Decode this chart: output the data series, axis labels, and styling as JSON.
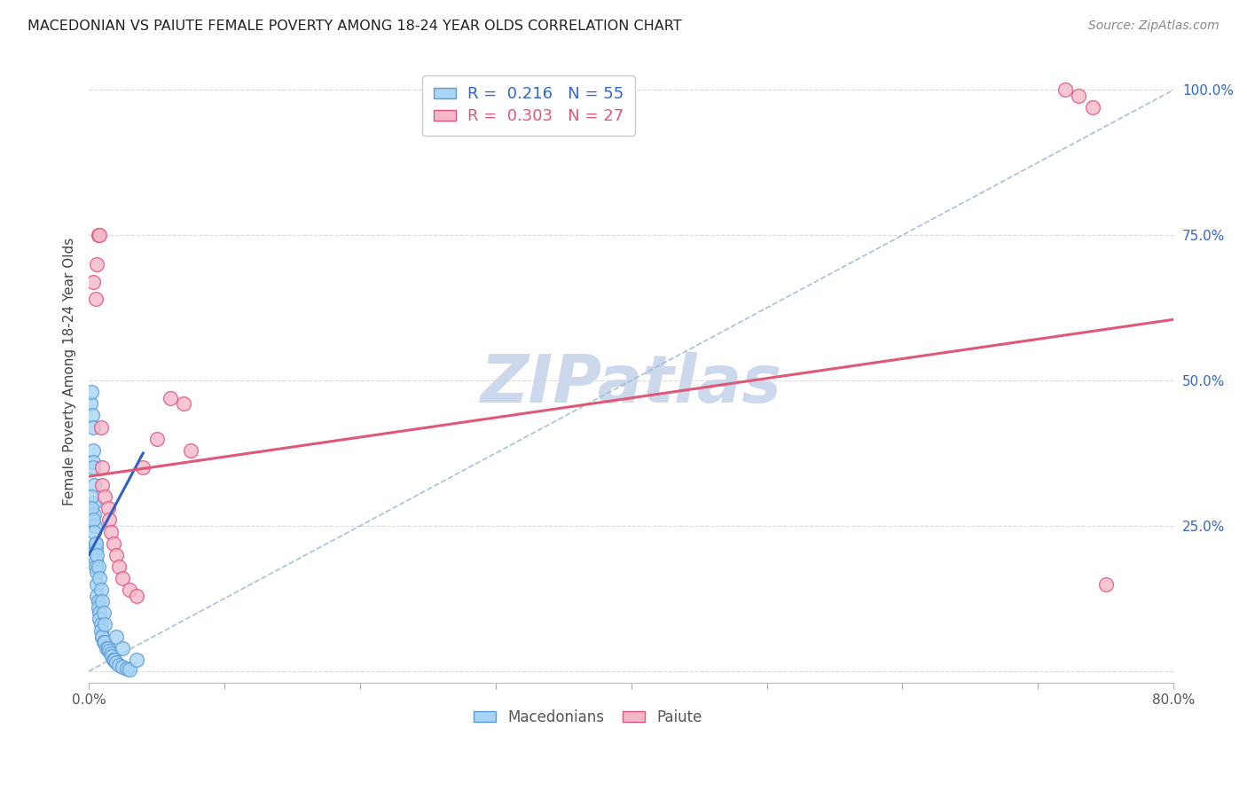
{
  "title": "MACEDONIAN VS PAIUTE FEMALE POVERTY AMONG 18-24 YEAR OLDS CORRELATION CHART",
  "source": "Source: ZipAtlas.com",
  "ylabel": "Female Poverty Among 18-24 Year Olds",
  "xlim": [
    0.0,
    0.8
  ],
  "ylim": [
    -0.02,
    1.05
  ],
  "xticks": [
    0.0,
    0.1,
    0.2,
    0.3,
    0.4,
    0.5,
    0.6,
    0.7,
    0.8
  ],
  "xticklabels": [
    "0.0%",
    "",
    "",
    "",
    "",
    "",
    "",
    "",
    "80.0%"
  ],
  "yticks": [
    0.0,
    0.25,
    0.5,
    0.75,
    1.0
  ],
  "yticklabels_right": [
    "",
    "25.0%",
    "50.0%",
    "75.0%",
    "100.0%"
  ],
  "macedonian_color": "#a8d4f5",
  "paiute_color": "#f5b8c8",
  "macedonian_edge": "#5b9bd5",
  "paiute_edge": "#e05080",
  "trend_mac_color": "#3060c0",
  "trend_paiute_color": "#e05878",
  "diag_color": "#a0b8d8",
  "R_mac": 0.216,
  "N_mac": 55,
  "R_paiute": 0.303,
  "N_paiute": 27,
  "mac_x": [
    0.0015,
    0.002,
    0.0025,
    0.003,
    0.003,
    0.003,
    0.0035,
    0.004,
    0.004,
    0.004,
    0.0045,
    0.005,
    0.005,
    0.005,
    0.005,
    0.006,
    0.006,
    0.006,
    0.007,
    0.007,
    0.008,
    0.008,
    0.009,
    0.009,
    0.01,
    0.01,
    0.011,
    0.012,
    0.013,
    0.014,
    0.015,
    0.016,
    0.017,
    0.018,
    0.019,
    0.02,
    0.022,
    0.025,
    0.028,
    0.03,
    0.002,
    0.002,
    0.003,
    0.004,
    0.005,
    0.006,
    0.007,
    0.008,
    0.009,
    0.01,
    0.011,
    0.012,
    0.02,
    0.025,
    0.035
  ],
  "mac_y": [
    0.46,
    0.48,
    0.44,
    0.42,
    0.38,
    0.36,
    0.35,
    0.32,
    0.29,
    0.27,
    0.25,
    0.22,
    0.21,
    0.19,
    0.18,
    0.17,
    0.15,
    0.13,
    0.12,
    0.11,
    0.1,
    0.09,
    0.08,
    0.07,
    0.06,
    0.06,
    0.05,
    0.05,
    0.04,
    0.04,
    0.035,
    0.03,
    0.025,
    0.02,
    0.02,
    0.015,
    0.01,
    0.008,
    0.005,
    0.003,
    0.3,
    0.28,
    0.26,
    0.24,
    0.22,
    0.2,
    0.18,
    0.16,
    0.14,
    0.12,
    0.1,
    0.08,
    0.06,
    0.04,
    0.02
  ],
  "pai_x": [
    0.003,
    0.005,
    0.006,
    0.007,
    0.008,
    0.009,
    0.01,
    0.01,
    0.012,
    0.014,
    0.015,
    0.016,
    0.018,
    0.02,
    0.022,
    0.025,
    0.03,
    0.035,
    0.06,
    0.07,
    0.075,
    0.72,
    0.73,
    0.74,
    0.75,
    0.05,
    0.04
  ],
  "pai_y": [
    0.67,
    0.64,
    0.7,
    0.75,
    0.75,
    0.42,
    0.35,
    0.32,
    0.3,
    0.28,
    0.26,
    0.24,
    0.22,
    0.2,
    0.18,
    0.16,
    0.14,
    0.13,
    0.47,
    0.46,
    0.38,
    1.0,
    0.99,
    0.97,
    0.15,
    0.4,
    0.35
  ],
  "background_color": "#ffffff",
  "grid_color": "#d8d8d8",
  "watermark": "ZIPatlas",
  "watermark_color": "#ccd8ec",
  "mac_trend_x0": 0.0,
  "mac_trend_x1": 0.04,
  "mac_trend_y0": 0.2,
  "mac_trend_y1": 0.375,
  "pai_trend_x0": 0.0,
  "pai_trend_x1": 0.8,
  "pai_trend_y0": 0.335,
  "pai_trend_y1": 0.605
}
